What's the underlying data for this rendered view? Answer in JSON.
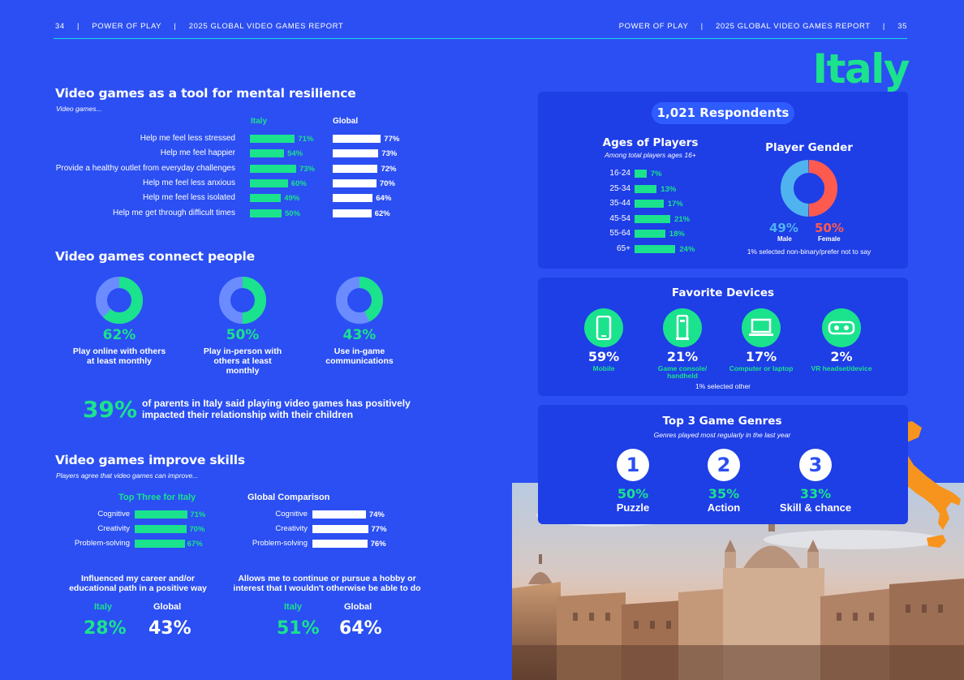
{
  "header": {
    "left": {
      "page": "34",
      "sep1": "|",
      "brand": "POWER OF PLAY",
      "sep2": "|",
      "report": "2025 GLOBAL VIDEO GAMES REPORT"
    },
    "right": {
      "brand": "POWER OF PLAY",
      "sep1": "|",
      "report": "2025 GLOBAL VIDEO GAMES REPORT",
      "sep2": "|",
      "page": "35"
    }
  },
  "country": "Italy",
  "resilience": {
    "title": "Video games as a tool for mental resilience",
    "subtitle": "Video games...",
    "col_italy": "Italy",
    "col_global": "Global",
    "rows": [
      {
        "label": "Help me feel less stressed",
        "italy": 71,
        "italy_text": "71%",
        "global": 77,
        "global_text": "77%"
      },
      {
        "label": "Help me feel happier",
        "italy": 54,
        "italy_text": "54%",
        "global": 73,
        "global_text": "73%"
      },
      {
        "label": "Provide a healthy outlet from everyday challenges",
        "italy": 73,
        "italy_text": "73%",
        "global": 72,
        "global_text": "72%"
      },
      {
        "label": "Help me feel less anxious",
        "italy": 60,
        "italy_text": "60%",
        "global": 70,
        "global_text": "70%"
      },
      {
        "label": "Help me feel less isolated",
        "italy": 49,
        "italy_text": "49%",
        "global": 64,
        "global_text": "64%"
      },
      {
        "label": "Help me get through difficult times",
        "italy": 50,
        "italy_text": "50%",
        "global": 62,
        "global_text": "62%"
      }
    ]
  },
  "connect": {
    "title": "Video games connect people",
    "items": [
      {
        "value": 62,
        "pct": "62%",
        "line1": "Play online with others",
        "line2": "at least monthly",
        "line3": ""
      },
      {
        "value": 50,
        "pct": "50%",
        "line1": "Play in-person with",
        "line2": "others at least",
        "line3": "monthly"
      },
      {
        "value": 43,
        "pct": "43%",
        "line1": "Use in-game",
        "line2": "communications",
        "line3": ""
      }
    ],
    "parents_pct": "39%",
    "parents_line1": "of parents in Italy said playing video games has positively",
    "parents_line2": "impacted their relationship with their children"
  },
  "skills": {
    "title": "Video games improve skills",
    "subtitle": "Players agree that video games can improve...",
    "italy_header": "Top Three for Italy",
    "global_header": "Global Comparison",
    "italy_rows": [
      {
        "label": "Cognitive",
        "value": 71,
        "text": "71%"
      },
      {
        "label": "Creativity",
        "value": 70,
        "text": "70%"
      },
      {
        "label": "Problem-solving",
        "value": 67,
        "text": "67%"
      }
    ],
    "global_rows": [
      {
        "label": "Cognitive",
        "value": 74,
        "text": "74%"
      },
      {
        "label": "Creativity",
        "value": 77,
        "text": "77%"
      },
      {
        "label": "Problem-solving",
        "value": 76,
        "text": "76%"
      }
    ],
    "career": {
      "line1": "Influenced my career and/or",
      "line2": "educational path in a positive way",
      "italy_label": "Italy",
      "global_label": "Global",
      "italy": "28%",
      "global": "43%"
    },
    "hobby": {
      "line1": "Allows me to continue or pursue a hobby or",
      "line2": "interest that I wouldn't otherwise be able to do",
      "italy_label": "Italy",
      "global_label": "Global",
      "italy": "51%",
      "global": "64%"
    }
  },
  "respondents": "1,021 Respondents",
  "ages": {
    "title": "Ages of Players",
    "subtitle": "Among total players ages 16+",
    "rows": [
      {
        "label": "16-24",
        "value": 7,
        "text": "7%"
      },
      {
        "label": "25-34",
        "value": 13,
        "text": "13%"
      },
      {
        "label": "35-44",
        "value": 17,
        "text": "17%"
      },
      {
        "label": "45-54",
        "value": 21,
        "text": "21%"
      },
      {
        "label": "55-64",
        "value": 18,
        "text": "18%"
      },
      {
        "label": "65+",
        "value": 24,
        "text": "24%"
      }
    ]
  },
  "gender": {
    "title": "Player Gender",
    "male": 49,
    "male_text": "49%",
    "male_label": "Male",
    "female": 50,
    "female_text": "50%",
    "female_label": "Female",
    "note": "1% selected non-binary/prefer not to say",
    "male_color": "#4fb3f0",
    "female_color": "#ff5a4e"
  },
  "devices": {
    "title": "Favorite Devices",
    "items": [
      {
        "icon": "mobile-icon",
        "pct": "59%",
        "label1": "Mobile",
        "label2": ""
      },
      {
        "icon": "console-icon",
        "pct": "21%",
        "label1": "Game console/",
        "label2": "handheld"
      },
      {
        "icon": "laptop-icon",
        "pct": "17%",
        "label1": "Computer or laptop",
        "label2": ""
      },
      {
        "icon": "vr-headset-icon",
        "pct": "2%",
        "label1": "VR headset/device",
        "label2": ""
      }
    ],
    "note": "1% selected other"
  },
  "genres": {
    "title": "Top 3 Game Genres",
    "subtitle": "Genres played most regularly in the last year",
    "items": [
      {
        "rank": "1",
        "pct": "50%",
        "label": "Puzzle"
      },
      {
        "rank": "2",
        "pct": "35%",
        "label": "Action"
      },
      {
        "rank": "3",
        "pct": "33%",
        "label": "Skill & chance"
      }
    ]
  },
  "colors": {
    "background": "#2b4ff2",
    "accent_green": "#1be28d",
    "panel": "#1e3ee6",
    "map_orange": "#f7941d"
  }
}
